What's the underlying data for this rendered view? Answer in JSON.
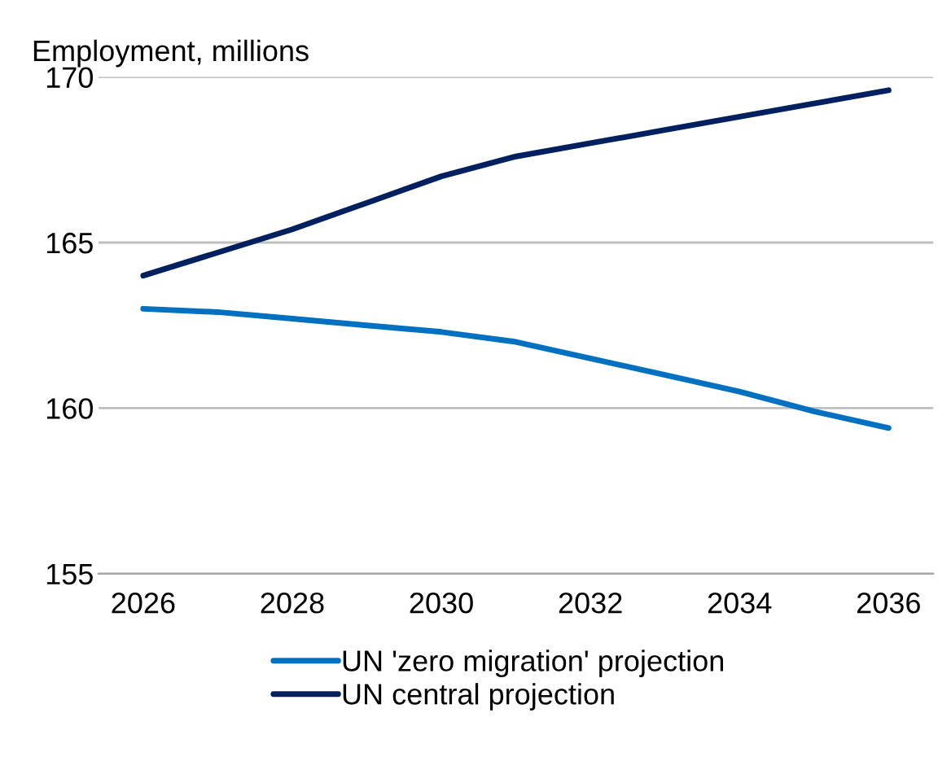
{
  "chart_data": {
    "type": "line",
    "ylabel": "Employment, millions",
    "x": [
      2026,
      2027,
      2028,
      2029,
      2030,
      2031,
      2032,
      2033,
      2034,
      2035,
      2036
    ],
    "series": [
      {
        "name": "UN 'zero migration' projection",
        "color": "#0070c0",
        "values": [
          163.0,
          162.9,
          162.7,
          162.5,
          162.3,
          162.0,
          161.5,
          161.0,
          160.5,
          159.9,
          159.4
        ]
      },
      {
        "name": "UN central projection",
        "color": "#002060",
        "values": [
          164.0,
          164.7,
          165.4,
          166.2,
          167.0,
          167.6,
          168.0,
          168.4,
          168.8,
          169.2,
          169.6
        ]
      }
    ],
    "xlim": [
      2025.4,
      2036.6
    ],
    "xticks": [
      2026,
      2028,
      2030,
      2032,
      2034,
      2036
    ],
    "ylim": [
      155,
      170
    ],
    "yticks": [
      155,
      160,
      165,
      170
    ],
    "grid": "y",
    "legend": "bottom",
    "marker": "none",
    "line_style": "solid"
  }
}
